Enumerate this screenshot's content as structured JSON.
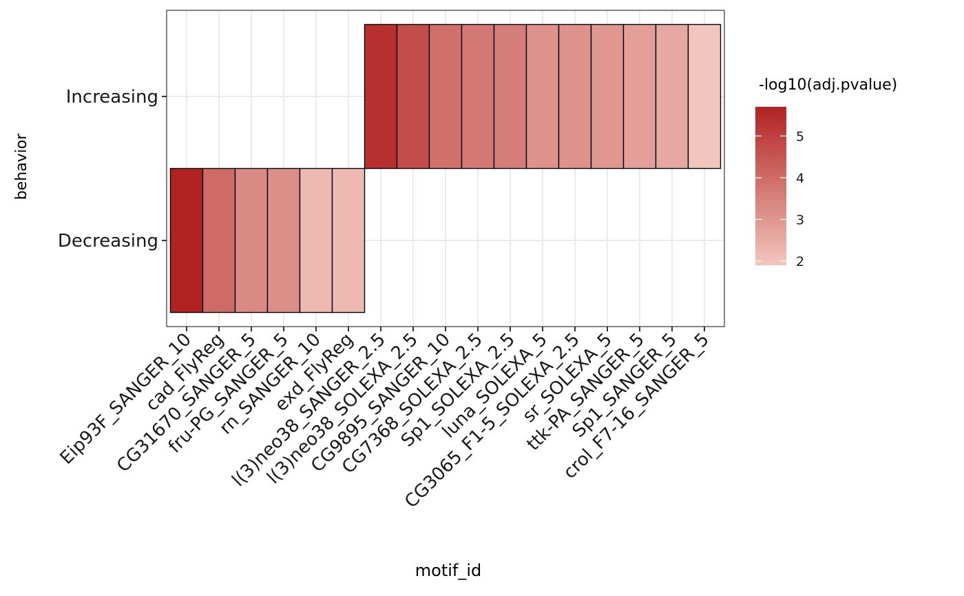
{
  "chart_data": {
    "type": "heatmap",
    "xlabel": "motif_id",
    "ylabel": "behavior",
    "x": [
      "Eip93F_SANGER_10",
      "cad_FlyReg",
      "CG31670_SANGER_5",
      "fru-PG_SANGER_5",
      "rn_SANGER_10",
      "exd_FlyReg",
      "l(3)neo38_SANGER_2.5",
      "l(3)neo38_SOLEXA_2.5",
      "CG9895_SANGER_10",
      "CG7368_SOLEXA_2.5",
      "Sp1_SOLEXA_2.5",
      "luna_SOLEXA_5",
      "CG3065_F1-5_SOLEXA_2.5",
      "sr_SOLEXA_5",
      "ttk-PA_SANGER_5",
      "Sp1_SANGER_5",
      "crol_F7-16_SANGER_5"
    ],
    "y": [
      "Decreasing",
      "Increasing"
    ],
    "cells": [
      {
        "x": "Eip93F_SANGER_10",
        "y": "Decreasing",
        "value": 5.7
      },
      {
        "x": "cad_FlyReg",
        "y": "Decreasing",
        "value": 4.0
      },
      {
        "x": "CG31670_SANGER_5",
        "y": "Decreasing",
        "value": 3.3
      },
      {
        "x": "fru-PG_SANGER_5",
        "y": "Decreasing",
        "value": 3.2
      },
      {
        "x": "rn_SANGER_10",
        "y": "Decreasing",
        "value": 2.2
      },
      {
        "x": "exd_FlyReg",
        "y": "Decreasing",
        "value": 2.2
      },
      {
        "x": "l(3)neo38_SANGER_2.5",
        "y": "Increasing",
        "value": 5.4
      },
      {
        "x": "l(3)neo38_SOLEXA_2.5",
        "y": "Increasing",
        "value": 4.7
      },
      {
        "x": "CG9895_SANGER_10",
        "y": "Increasing",
        "value": 3.9
      },
      {
        "x": "CG7368_SOLEXA_2.5",
        "y": "Increasing",
        "value": 3.7
      },
      {
        "x": "Sp1_SOLEXA_2.5",
        "y": "Increasing",
        "value": 3.6
      },
      {
        "x": "luna_SOLEXA_5",
        "y": "Increasing",
        "value": 3.1
      },
      {
        "x": "CG3065_F1-5_SOLEXA_2.5",
        "y": "Increasing",
        "value": 3.1
      },
      {
        "x": "sr_SOLEXA_5",
        "y": "Increasing",
        "value": 3.0
      },
      {
        "x": "ttk-PA_SANGER_5",
        "y": "Increasing",
        "value": 2.8
      },
      {
        "x": "Sp1_SANGER_5",
        "y": "Increasing",
        "value": 2.6
      },
      {
        "x": "crol_F7-16_SANGER_5",
        "y": "Increasing",
        "value": 1.9
      }
    ],
    "legend": {
      "title": "-log10(adj.pvalue)",
      "ticks": [
        2,
        3,
        4,
        5
      ],
      "range": [
        1.9,
        5.7
      ],
      "low_color": "#f2c6bd",
      "high_color": "#b22222",
      "position": "right"
    },
    "grid": true,
    "tile_border_color": "#000000",
    "panel_border_color": "#333333"
  }
}
